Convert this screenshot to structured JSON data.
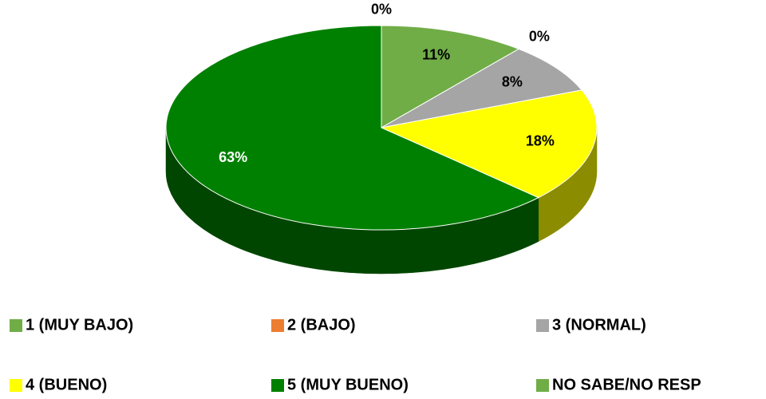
{
  "chart_data": {
    "type": "pie",
    "categories": [
      "1 (MUY BAJO)",
      "2 (BAJO)",
      "3 (NORMAL)",
      "4 (BUENO)",
      "5 (MUY BUENO)",
      "NO SABE/NO RESP"
    ],
    "values": [
      11,
      0,
      8,
      18,
      63,
      0
    ],
    "value_labels": [
      "11%",
      "0%",
      "8%",
      "18%",
      "63%",
      "0%"
    ],
    "colors": [
      "#70ad47",
      "#ed7d31",
      "#a5a5a5",
      "#ffff00",
      "#008000",
      "#70ad47"
    ],
    "legend": "bottom"
  }
}
